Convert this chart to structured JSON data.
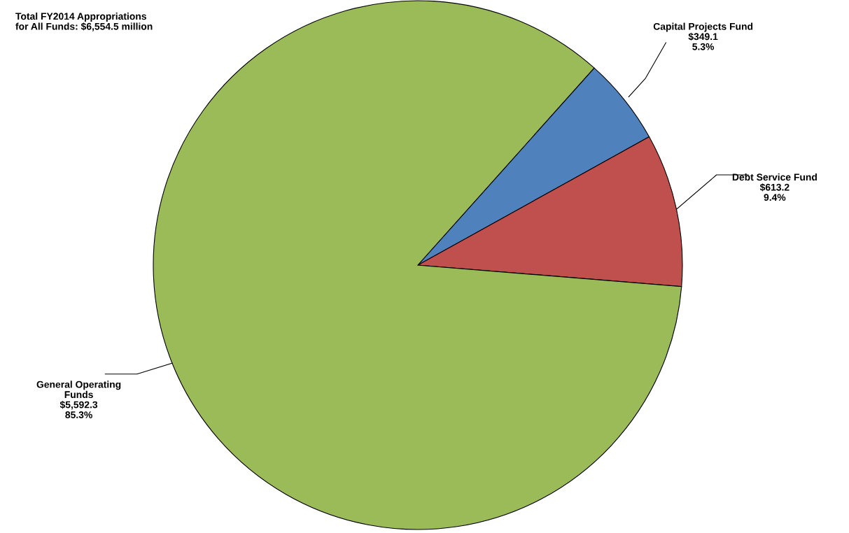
{
  "chart_data": {
    "type": "pie",
    "title": "Total FY2014 Appropriations\nfor All Funds: $6,554.5 million",
    "categories": [
      "Capital Projects Fund",
      "Debt Service Fund",
      "General Operating\nFunds"
    ],
    "values": [
      349.1,
      613.2,
      5592.3
    ],
    "value_labels": [
      "$349.1\n5.3%",
      "$613.2\n9.4%",
      "$5,592.3\n85.3%"
    ],
    "colors": [
      "#4f81bd",
      "#c0504d",
      "#9bbb59"
    ],
    "legend": false
  }
}
